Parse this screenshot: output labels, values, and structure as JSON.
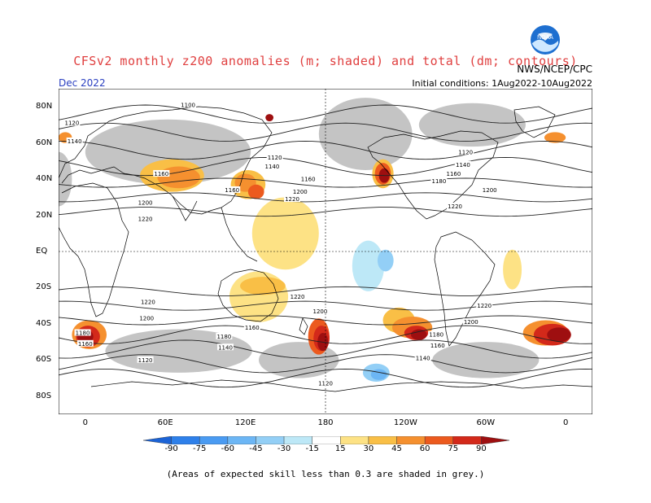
{
  "header": {
    "title": "CFSv2 monthly z200 anomalies (m; shaded) and total (dm; contours)",
    "agency": "NWS/NCEP/CPC",
    "valid_month": "Dec 2022",
    "initial_conditions": "Initial conditions: 1Aug2022-10Aug2022",
    "logo_text": "NOAA"
  },
  "axes": {
    "lat_labels": [
      "80N",
      "60N",
      "40N",
      "20N",
      "EQ",
      "20S",
      "40S",
      "60S",
      "80S"
    ],
    "lat_values": [
      80,
      60,
      40,
      20,
      0,
      -20,
      -40,
      -60,
      -80
    ],
    "lon_labels": [
      "0",
      "60E",
      "120E",
      "180",
      "120W",
      "60W",
      "0"
    ],
    "lon_values": [
      0,
      60,
      120,
      180,
      240,
      300,
      360
    ]
  },
  "contour_labels": [
    {
      "text": "1100",
      "lon": 77,
      "lat": 81
    },
    {
      "text": "1120",
      "lon": -10,
      "lat": 71
    },
    {
      "text": "1140",
      "lon": -8,
      "lat": 61
    },
    {
      "text": "1160",
      "lon": 57,
      "lat": 43
    },
    {
      "text": "1120",
      "lon": 142,
      "lat": 52
    },
    {
      "text": "1140",
      "lon": 140,
      "lat": 47
    },
    {
      "text": "1160",
      "lon": 110,
      "lat": 34
    },
    {
      "text": "1160",
      "lon": 167,
      "lat": 40
    },
    {
      "text": "1200",
      "lon": 161,
      "lat": 33
    },
    {
      "text": "1220",
      "lon": 155,
      "lat": 29
    },
    {
      "text": "1200",
      "lon": 45,
      "lat": 27
    },
    {
      "text": "1220",
      "lon": 45,
      "lat": 18
    },
    {
      "text": "1120",
      "lon": 285,
      "lat": 55
    },
    {
      "text": "1140",
      "lon": 283,
      "lat": 48
    },
    {
      "text": "1160",
      "lon": 276,
      "lat": 43
    },
    {
      "text": "1180",
      "lon": 265,
      "lat": 39
    },
    {
      "text": "1200",
      "lon": 303,
      "lat": 34
    },
    {
      "text": "1220",
      "lon": 277,
      "lat": 25
    },
    {
      "text": "1220",
      "lon": 47,
      "lat": -28
    },
    {
      "text": "1200",
      "lon": 46,
      "lat": -37
    },
    {
      "text": "1220",
      "lon": 159,
      "lat": -25
    },
    {
      "text": "1200",
      "lon": 176,
      "lat": -33
    },
    {
      "text": "1160",
      "lon": 125,
      "lat": -42
    },
    {
      "text": "1180",
      "lon": 104,
      "lat": -47
    },
    {
      "text": "1140",
      "lon": 105,
      "lat": -53
    },
    {
      "text": "1120",
      "lon": 45,
      "lat": -60
    },
    {
      "text": "1120",
      "lon": 180,
      "lat": -73
    },
    {
      "text": "1180",
      "lon": 263,
      "lat": -46
    },
    {
      "text": "1160",
      "lon": 264,
      "lat": -52
    },
    {
      "text": "1140",
      "lon": 253,
      "lat": -59
    },
    {
      "text": "1220",
      "lon": 299,
      "lat": -30
    },
    {
      "text": "1200",
      "lon": 289,
      "lat": -39
    },
    {
      "text": "1180",
      "lon": -2,
      "lat": -45
    },
    {
      "text": "1160",
      "lon": 0,
      "lat": -51
    }
  ],
  "anomaly_blobs": [
    {
      "lon": 65,
      "lat": 42,
      "rx": 24,
      "ry": 9,
      "level": 30
    },
    {
      "lon": 70,
      "lat": 41,
      "rx": 16,
      "ry": 6,
      "level": 45
    },
    {
      "lon": 122,
      "lat": 37,
      "rx": 13,
      "ry": 8,
      "level": 30
    },
    {
      "lon": 120,
      "lat": 38,
      "rx": 8,
      "ry": 5,
      "level": 45
    },
    {
      "lon": 128,
      "lat": 33,
      "rx": 6,
      "ry": 4,
      "level": 60
    },
    {
      "lon": 150,
      "lat": 10,
      "rx": 25,
      "ry": 20,
      "level": 15
    },
    {
      "lon": 130,
      "lat": -25,
      "rx": 22,
      "ry": 14,
      "level": 15
    },
    {
      "lon": 133,
      "lat": -19,
      "rx": 17,
      "ry": 5,
      "level": 30
    },
    {
      "lon": 175,
      "lat": -47,
      "rx": 8,
      "ry": 10,
      "level": 60
    },
    {
      "lon": 177,
      "lat": -48,
      "rx": 6,
      "ry": 7,
      "level": 75
    },
    {
      "lon": 178,
      "lat": -50,
      "rx": 4,
      "ry": 5,
      "level": 90
    },
    {
      "lon": 223,
      "lat": 43,
      "rx": 8,
      "ry": 8,
      "level": 30
    },
    {
      "lon": 223,
      "lat": 43,
      "rx": 6,
      "ry": 6,
      "level": 60
    },
    {
      "lon": 224,
      "lat": 42,
      "rx": 4,
      "ry": 4,
      "level": 90
    },
    {
      "lon": 235,
      "lat": -38,
      "rx": 12,
      "ry": 7,
      "level": 30
    },
    {
      "lon": 245,
      "lat": -42,
      "rx": 15,
      "ry": 6,
      "level": 45
    },
    {
      "lon": 248,
      "lat": -45,
      "rx": 9,
      "ry": 4,
      "level": 75
    },
    {
      "lon": 250,
      "lat": -46,
      "rx": 6,
      "ry": 3,
      "level": 90
    },
    {
      "lon": 320,
      "lat": -10,
      "rx": 7,
      "ry": 11,
      "level": 15
    },
    {
      "lon": 345,
      "lat": -45,
      "rx": 17,
      "ry": 7,
      "level": 45
    },
    {
      "lon": 350,
      "lat": -46,
      "rx": 14,
      "ry": 6,
      "level": 75
    },
    {
      "lon": 355,
      "lat": -46,
      "rx": 9,
      "ry": 4,
      "level": 90
    },
    {
      "lon": 3,
      "lat": -46,
      "rx": 13,
      "ry": 8,
      "level": 45
    },
    {
      "lon": 2,
      "lat": -47,
      "rx": 9,
      "ry": 6,
      "level": 75
    },
    {
      "lon": 0,
      "lat": -47,
      "rx": 6,
      "ry": 4,
      "level": 90
    },
    {
      "lon": 352,
      "lat": 63,
      "rx": 8,
      "ry": 3,
      "level": 45
    },
    {
      "lon": -15,
      "lat": 63,
      "rx": 5,
      "ry": 3,
      "level": 45
    },
    {
      "lon": 138,
      "lat": 74,
      "rx": 3,
      "ry": 2,
      "level": 90
    },
    {
      "lon": 212,
      "lat": -8,
      "rx": 12,
      "ry": 14,
      "level": -15
    },
    {
      "lon": 225,
      "lat": -5,
      "rx": 6,
      "ry": 6,
      "level": -30
    },
    {
      "lon": 218,
      "lat": -67,
      "rx": 10,
      "ry": 5,
      "level": -30
    },
    {
      "lon": 220,
      "lat": -68,
      "rx": 6,
      "ry": 3,
      "level": -45
    }
  ],
  "grey_regions": [
    {
      "lon": 62,
      "lat": 55,
      "rx": 62,
      "ry": 18
    },
    {
      "lon": 210,
      "lat": 65,
      "rx": 35,
      "ry": 20
    },
    {
      "lon": 290,
      "lat": 70,
      "rx": 40,
      "ry": 12
    },
    {
      "lon": -20,
      "lat": 40,
      "rx": 10,
      "ry": 15
    },
    {
      "lon": 70,
      "lat": -55,
      "rx": 55,
      "ry": 12
    },
    {
      "lon": 300,
      "lat": -60,
      "rx": 40,
      "ry": 10
    },
    {
      "lon": 160,
      "lat": -60,
      "rx": 30,
      "ry": 10
    }
  ],
  "colorbar": {
    "levels": [
      -90,
      -75,
      -60,
      -45,
      -30,
      -15,
      15,
      30,
      45,
      60,
      75,
      90
    ],
    "labels": [
      "-90",
      "-75",
      "-60",
      "-45",
      "-30",
      "-15",
      "15",
      "30",
      "45",
      "60",
      "75",
      "90"
    ],
    "colors": [
      "#1b63d6",
      "#2e80ea",
      "#4a9bf2",
      "#6cb6f5",
      "#93cff6",
      "#bde8f7",
      "#ffffff",
      "#fde285",
      "#f9bf46",
      "#f5902f",
      "#ec5a1e",
      "#d3291a",
      "#9e0f10"
    ]
  },
  "colors": {
    "skill_mask": "#c4c4c4",
    "contour": "#222222",
    "coast": "#000000",
    "title": "#e04040",
    "valid_month": "#2a3fc0"
  },
  "note": "(Areas of expected skill less than 0.3 are shaded in grey.)"
}
